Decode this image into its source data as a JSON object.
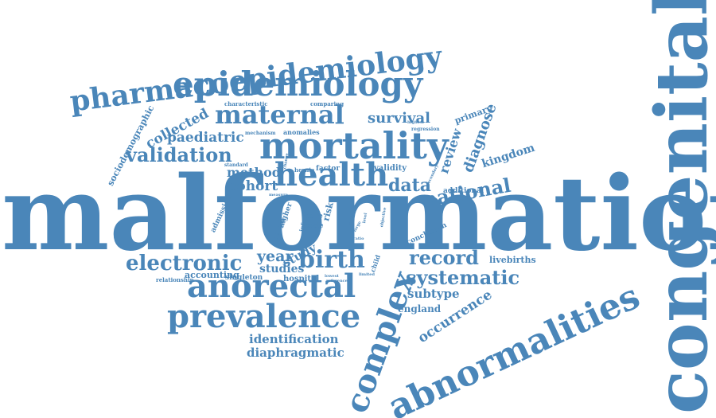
{
  "color": "#4a86b9",
  "words": [
    "malformation",
    "congenital",
    "abnormalities",
    "mortality",
    "health",
    "epidemiology",
    "pharmacoepidemiology",
    "anorectal",
    "prevalence",
    "complex",
    "maternal",
    "birth",
    "electronic",
    "validation",
    "systematic",
    "record",
    "national",
    "data",
    "cohort",
    "method",
    "year",
    "survival",
    "paediatric",
    "collected",
    "diagnose",
    "review",
    "occurrence",
    "kingdom",
    "subtype",
    "study",
    "studies",
    "identification",
    "diaphragmatic",
    "england",
    "livebirths",
    "sociodemographic",
    "primary",
    "additional",
    "accounting",
    "singleton",
    "hospital",
    "relationship",
    "hernia",
    "factor",
    "validity",
    "risk",
    "care",
    "code",
    "result",
    "higher",
    "admission",
    "conclusion",
    "characteristic",
    "comparing",
    "mechanism",
    "anomalies",
    "regression",
    "standard",
    "measure",
    "infant",
    "death",
    "child",
    "objective",
    "lowest",
    "reference",
    "limited",
    "secondary",
    "highest",
    "ratio",
    "large",
    "level",
    "change"
  ]
}
